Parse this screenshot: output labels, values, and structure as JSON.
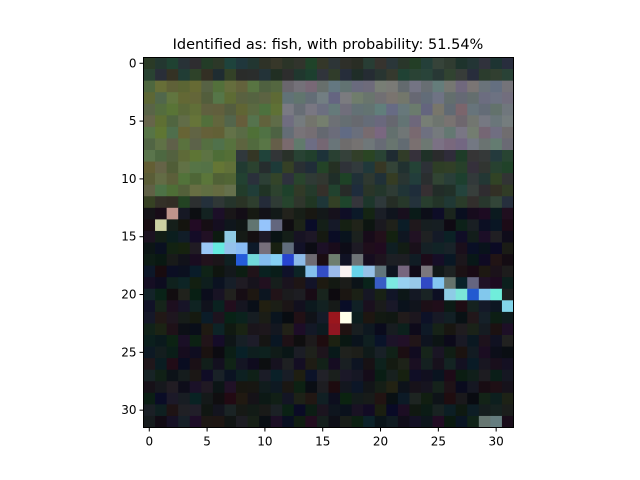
{
  "figure": {
    "title": "Identified as: fish, with probability: 51.54%"
  },
  "chart_data": {
    "type": "heatmap",
    "title": "Identified as: fish, with probability: 51.54%",
    "xlabel": "",
    "ylabel": "",
    "xlim": [
      -0.5,
      31.5
    ],
    "ylim": [
      31.5,
      -0.5
    ],
    "grid": false,
    "x_ticks": [
      0,
      5,
      10,
      15,
      20,
      25,
      30
    ],
    "y_ticks": [
      0,
      5,
      10,
      15,
      20,
      25,
      30
    ],
    "image_size": [
      32,
      32
    ],
    "colors": {
      "canopy_green": "#5a6a40",
      "sky_gray": "#6e7278",
      "dark_teal": "#2a3830",
      "background_dark": "#15171c",
      "body_light_blue": "#8ec8f0",
      "body_blue": "#3050d0",
      "fin_red": "#901020",
      "highlight_white": "#f4f4f4",
      "cyan": "#70e0e0"
    }
  }
}
